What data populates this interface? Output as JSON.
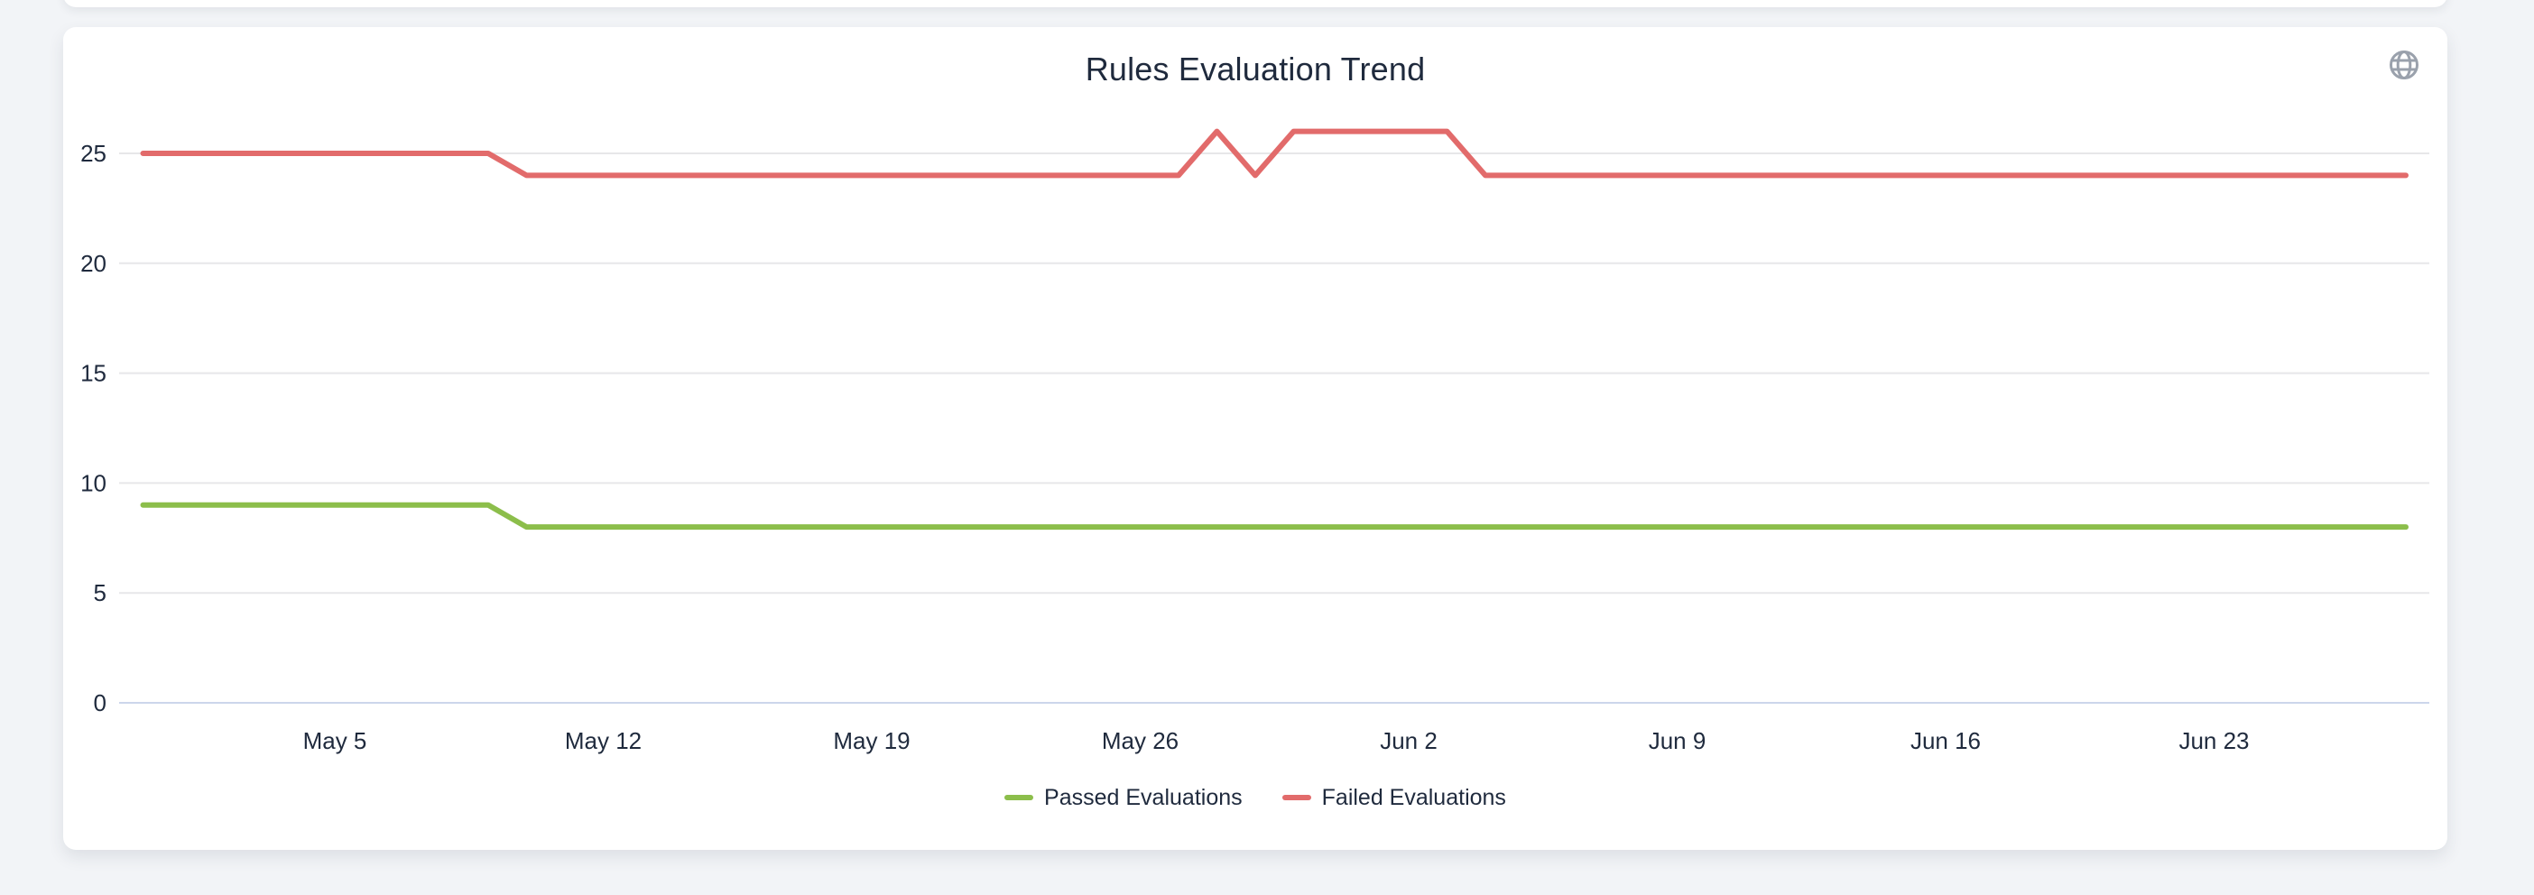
{
  "card": {
    "title": "Rules Evaluation Trend",
    "corner_icon": "globe-icon"
  },
  "colors": {
    "passed": "#8CBE4B",
    "failed": "#E26B6B",
    "grid": "#e7e7e9",
    "axis_line": "#ccd6eb",
    "text": "#1f2a3d",
    "icon": "#9aa1ac",
    "card_bg": "#ffffff",
    "page_bg": "#f2f4f7"
  },
  "chart_data": {
    "type": "line",
    "title": "Rules Evaluation Trend",
    "xlabel": "",
    "ylabel": "",
    "grid": true,
    "legend_position": "bottom",
    "ylim": [
      0,
      26
    ],
    "y_ticks": [
      0,
      5,
      10,
      15,
      20,
      25
    ],
    "x": [
      "Apr 30",
      "May 1",
      "May 2",
      "May 3",
      "May 4",
      "May 5",
      "May 6",
      "May 7",
      "May 8",
      "May 9",
      "May 10",
      "May 11",
      "May 12",
      "May 13",
      "May 14",
      "May 15",
      "May 16",
      "May 17",
      "May 18",
      "May 19",
      "May 20",
      "May 21",
      "May 22",
      "May 23",
      "May 24",
      "May 25",
      "May 26",
      "May 27",
      "May 28",
      "May 29",
      "May 30",
      "May 31",
      "Jun 1",
      "Jun 2",
      "Jun 3",
      "Jun 4",
      "Jun 5",
      "Jun 6",
      "Jun 7",
      "Jun 8",
      "Jun 9",
      "Jun 10",
      "Jun 11",
      "Jun 12",
      "Jun 13",
      "Jun 14",
      "Jun 15",
      "Jun 16",
      "Jun 17",
      "Jun 18",
      "Jun 19",
      "Jun 20",
      "Jun 21",
      "Jun 22",
      "Jun 23",
      "Jun 24",
      "Jun 25",
      "Jun 26",
      "Jun 27",
      "Jun 28"
    ],
    "x_ticks": [
      {
        "index": 5,
        "label": "May 5"
      },
      {
        "index": 12,
        "label": "May 12"
      },
      {
        "index": 19,
        "label": "May 19"
      },
      {
        "index": 26,
        "label": "May 26"
      },
      {
        "index": 33,
        "label": "Jun 2"
      },
      {
        "index": 40,
        "label": "Jun 9"
      },
      {
        "index": 47,
        "label": "Jun 16"
      },
      {
        "index": 54,
        "label": "Jun 23"
      }
    ],
    "series": [
      {
        "name": "Passed Evaluations",
        "color": "#8CBE4B",
        "values": [
          9,
          9,
          9,
          9,
          9,
          9,
          9,
          9,
          9,
          9,
          8,
          8,
          8,
          8,
          8,
          8,
          8,
          8,
          8,
          8,
          8,
          8,
          8,
          8,
          8,
          8,
          8,
          8,
          8,
          8,
          8,
          8,
          8,
          8,
          8,
          8,
          8,
          8,
          8,
          8,
          8,
          8,
          8,
          8,
          8,
          8,
          8,
          8,
          8,
          8,
          8,
          8,
          8,
          8,
          8,
          8,
          8,
          8,
          8,
          8
        ]
      },
      {
        "name": "Failed Evaluations",
        "color": "#E26B6B",
        "values": [
          25,
          25,
          25,
          25,
          25,
          25,
          25,
          25,
          25,
          25,
          24,
          24,
          24,
          24,
          24,
          24,
          24,
          24,
          24,
          24,
          24,
          24,
          24,
          24,
          24,
          24,
          24,
          24,
          26,
          24,
          26,
          26,
          26,
          26,
          26,
          24,
          24,
          24,
          24,
          24,
          24,
          24,
          24,
          24,
          24,
          24,
          24,
          24,
          24,
          24,
          24,
          24,
          24,
          24,
          24,
          24,
          24,
          24,
          24,
          24
        ]
      }
    ]
  }
}
